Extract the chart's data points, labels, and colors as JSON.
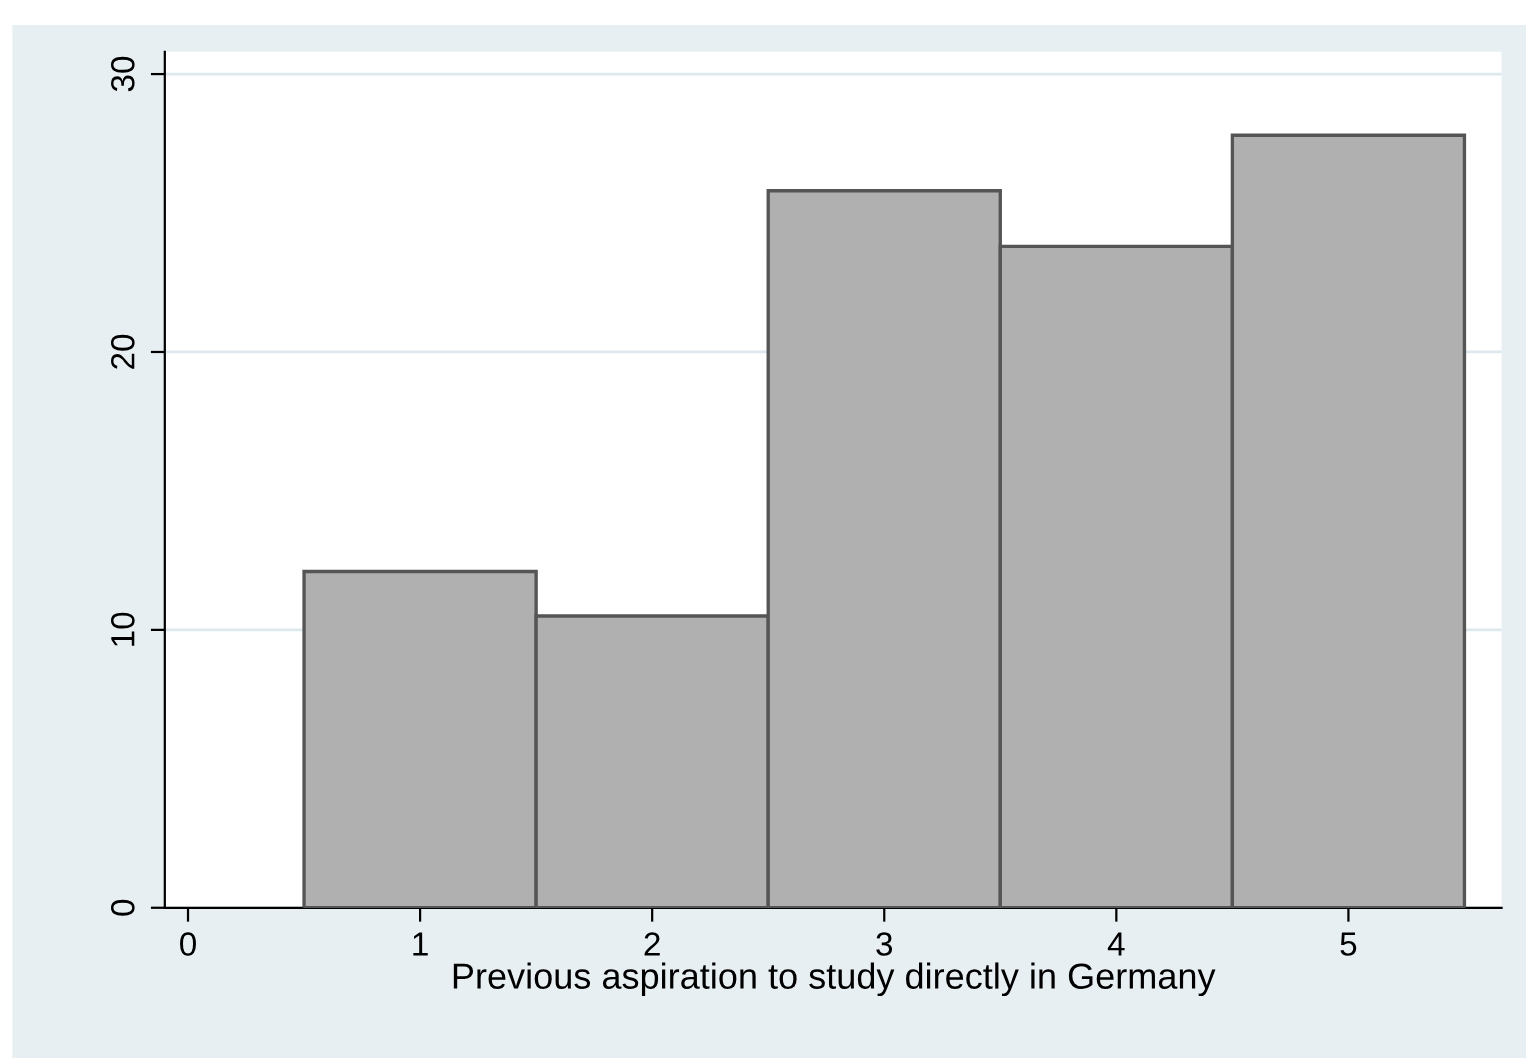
{
  "chart_data": {
    "type": "histogram",
    "xlabel": "Previous aspiration to study directly in Germany",
    "bins": [
      0.5,
      1.5,
      2.5,
      3.5,
      4.5,
      5.5
    ],
    "values": [
      12.1,
      10.5,
      25.8,
      23.8,
      27.8
    ],
    "color": "#b0b0b0",
    "xlim": [
      -0.1,
      5.66
    ],
    "ylim": [
      0,
      30.8
    ],
    "xticks": [
      0,
      1,
      2,
      3,
      4,
      5
    ],
    "yticks": [
      0,
      10,
      20,
      30
    ],
    "grid": "y"
  }
}
